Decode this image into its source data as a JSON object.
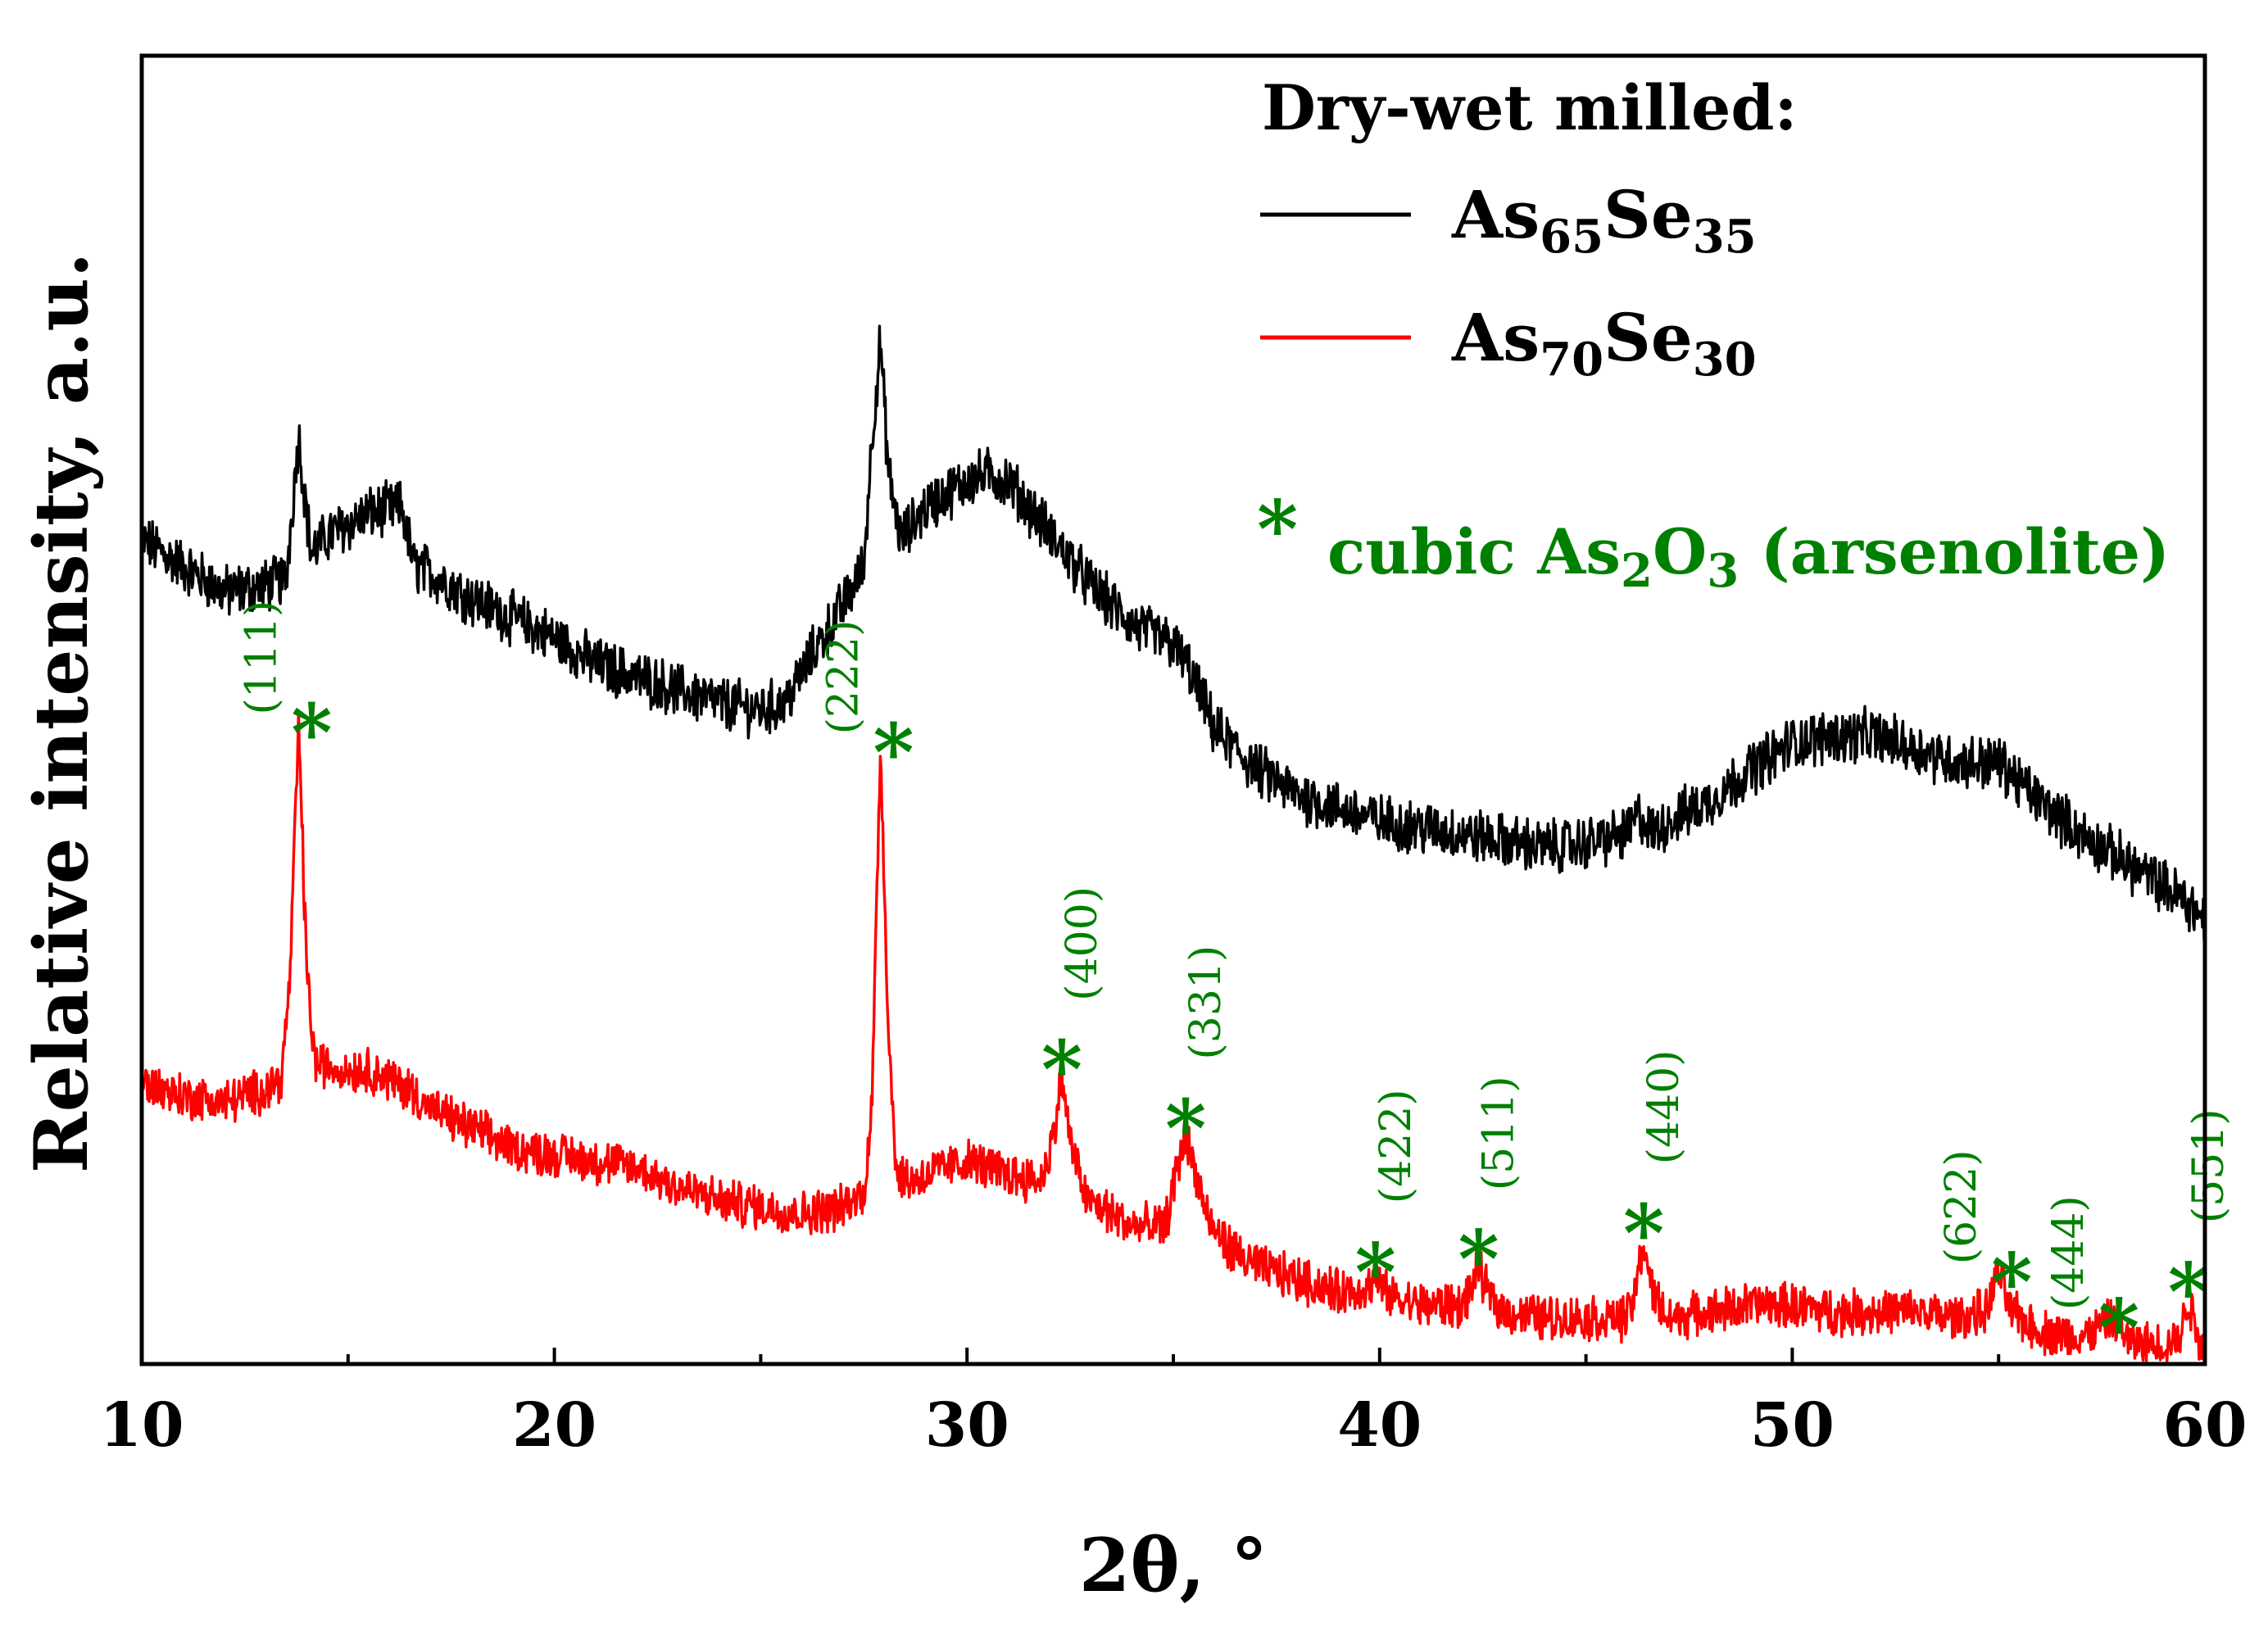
{
  "chart_data": {
    "type": "line",
    "xlabel": "2θ, °",
    "ylabel": "Relative intensity, a.u.",
    "xlim": [
      10,
      60
    ],
    "ylim": [
      0,
      100
    ],
    "x_ticks": [
      "10",
      "20",
      "30",
      "40",
      "50",
      "60"
    ],
    "legend": {
      "title": "Dry-wet milled:",
      "placement": "top-right",
      "entries": [
        {
          "base": "As",
          "sub1": "65",
          "mid": "Se",
          "sub2": "35",
          "color": "#000000"
        },
        {
          "base": "As",
          "sub1": "70",
          "mid": "Se",
          "sub2": "30",
          "color": "#ff0000"
        }
      ]
    },
    "annotation": {
      "star": "*",
      "pre": "cubic As",
      "sub1": "2",
      "mid": "O",
      "sub2": "3",
      "post": " (arsenolite)",
      "color": "#008000"
    },
    "series": [
      {
        "name": "As65Se35",
        "color": "#000000",
        "noise": 1.8,
        "x": [
          10,
          11,
          12,
          13,
          13.5,
          13.8,
          14.1,
          14.6,
          15.5,
          16.3,
          16.6,
          17,
          18,
          19,
          20,
          21,
          22,
          23,
          24,
          25,
          25.6,
          26.2,
          27,
          27.5,
          27.7,
          27.9,
          28.1,
          28.4,
          29,
          30,
          30.5,
          31,
          32,
          33,
          34,
          35,
          35.4,
          36,
          37,
          38,
          39,
          40,
          41,
          42,
          43,
          44,
          45,
          46,
          46.3,
          46.6,
          47,
          48,
          49,
          50,
          51,
          52,
          53,
          54,
          55,
          56,
          57,
          58,
          59,
          59.5,
          60
        ],
        "y": [
          63,
          61,
          59,
          59.5,
          60,
          71,
          62,
          63.5,
          65,
          65.5,
          61,
          60.5,
          58.5,
          57,
          55.5,
          53.5,
          52.5,
          51.5,
          50.5,
          50,
          50.5,
          54,
          58,
          61,
          71,
          78,
          68,
          63,
          65.5,
          67.5,
          68,
          67.5,
          63.5,
          59.5,
          56.5,
          55,
          53,
          48.5,
          45.5,
          43.5,
          42.5,
          41.5,
          41,
          40.5,
          40,
          39.5,
          39.8,
          40.5,
          42,
          40.5,
          41.5,
          43,
          45.5,
          47.5,
          48,
          48,
          47,
          46,
          46,
          43,
          40.5,
          38.5,
          36.5,
          35.5,
          34
        ]
      },
      {
        "name": "As70Se30",
        "color": "#ff0000",
        "noise": 1.5,
        "x": [
          10,
          11,
          12,
          13,
          13.4,
          13.6,
          13.8,
          14,
          14.2,
          14.8,
          15.5,
          16.5,
          17,
          18,
          19,
          20,
          21,
          22,
          23,
          24,
          25,
          26,
          27,
          27.5,
          27.7,
          27.9,
          28.1,
          28.3,
          28.7,
          29,
          30,
          31,
          31.8,
          32.1,
          32.3,
          32.5,
          32.9,
          33.5,
          34,
          34.8,
          35.1,
          35.3,
          35.5,
          35.9,
          36.5,
          37,
          38,
          39,
          39.7,
          39.9,
          40.2,
          41,
          42,
          42.2,
          42.4,
          42.6,
          43,
          44,
          45,
          46,
          46.2,
          46.4,
          46.6,
          47,
          48,
          49,
          50,
          51,
          52,
          53,
          54,
          54.7,
          55,
          55.3,
          56,
          57,
          57.5,
          57.8,
          58.2,
          59,
          59.4,
          59.6,
          59.8,
          60
        ],
        "y": [
          21.5,
          20.5,
          20,
          21,
          22,
          30,
          49,
          30,
          23,
          22.5,
          22.5,
          21,
          19.5,
          18,
          16.5,
          16,
          15.5,
          15,
          13.5,
          12.5,
          12,
          11.5,
          12,
          13,
          20,
          47.5,
          25,
          14.5,
          14,
          14.5,
          15.5,
          14.5,
          14,
          17.5,
          22,
          17,
          12.5,
          11.5,
          10.5,
          10.5,
          15,
          17.5,
          15,
          10.5,
          8.5,
          7.5,
          6.5,
          5.5,
          5.8,
          6.5,
          5.2,
          4.5,
          4.5,
          5.5,
          7.5,
          5.5,
          4,
          3.5,
          3.5,
          3.5,
          5.5,
          9.5,
          5.5,
          3.5,
          4,
          4.5,
          4.5,
          4,
          4,
          4,
          3.5,
          4,
          7,
          4,
          2.5,
          2,
          2.8,
          3.5,
          1.5,
          1.5,
          2,
          5,
          2.5,
          1
        ]
      }
    ],
    "peaks": [
      {
        "hkl": "(111)",
        "x": 13.8,
        "y": 49,
        "pos": "left"
      },
      {
        "hkl": "(222)",
        "x": 27.9,
        "y": 47.5,
        "pos": "left"
      },
      {
        "hkl": "(400)",
        "x": 32.3,
        "y": 22,
        "pos": "above"
      },
      {
        "hkl": "(331)",
        "x": 35.3,
        "y": 17.5,
        "pos": "above"
      },
      {
        "hkl": "(422)",
        "x": 39.9,
        "y": 6.5,
        "pos": "above"
      },
      {
        "hkl": "(511)",
        "x": 42.4,
        "y": 7.5,
        "pos": "above"
      },
      {
        "hkl": "(440)",
        "x": 46.4,
        "y": 9.5,
        "pos": "above"
      },
      {
        "hkl": "(622)",
        "x": 55.0,
        "y": 7,
        "pos": "left"
      },
      {
        "hkl": "(444)",
        "x": 57.6,
        "y": 3.5,
        "pos": "left"
      },
      {
        "hkl": "(551)",
        "x": 59.6,
        "y": 5,
        "pos": "above"
      }
    ]
  }
}
